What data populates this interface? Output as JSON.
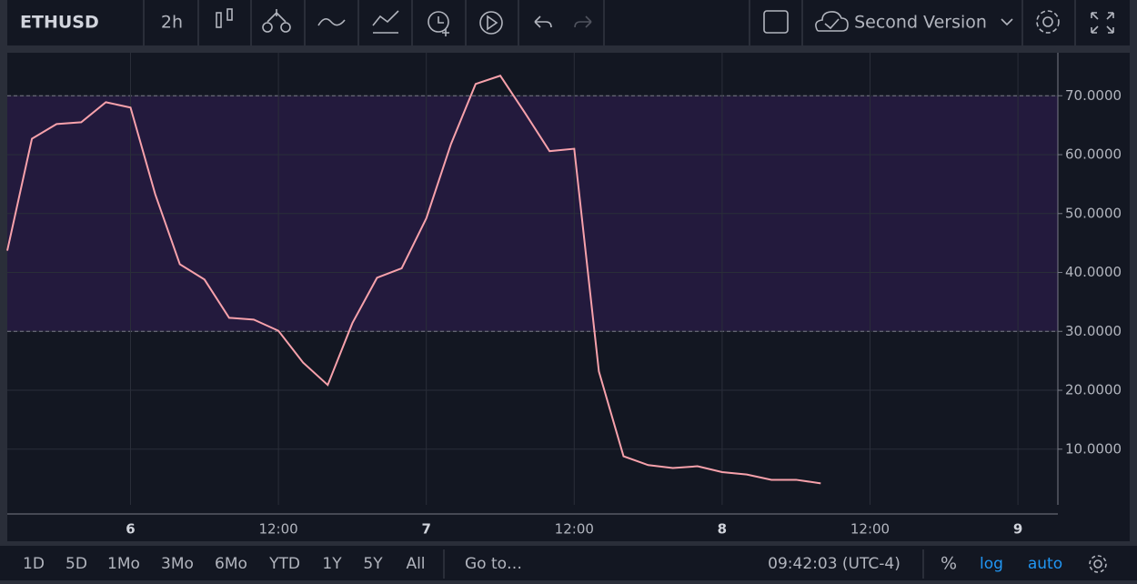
{
  "toolbar": {
    "symbol": "ETHUSD",
    "interval": "2h",
    "layout_name": "Second Version"
  },
  "chart_data": {
    "type": "line",
    "categories": [
      null,
      null,
      null,
      null,
      null,
      "6",
      null,
      null,
      null,
      null,
      null,
      "12:00",
      null,
      null,
      null,
      null,
      null,
      "7",
      null,
      null,
      null,
      null,
      null,
      "12:00",
      null,
      null,
      null,
      null,
      null,
      "8",
      null,
      null,
      null,
      null,
      null,
      "12:00",
      null,
      null,
      null,
      null,
      null,
      "9",
      null
    ],
    "series": [
      {
        "color": "#f7a1ab",
        "values": [
          43.7,
          62.7,
          65.2,
          65.5,
          68.9,
          68.0,
          53.3,
          41.4,
          38.8,
          32.3,
          32.0,
          30.1,
          24.7,
          20.9,
          31.4,
          39.1,
          40.7,
          49.2,
          61.8,
          72.0,
          73.4,
          67.1,
          60.6,
          61.0,
          23.2,
          8.8,
          7.3,
          6.8,
          7.1,
          6.1,
          5.7,
          4.8,
          4.8,
          4.2,
          null,
          null,
          null,
          null,
          null,
          null,
          null,
          null,
          null
        ]
      }
    ],
    "band": [
      30,
      70
    ],
    "band_color": "#231a3d",
    "ylim": [
      -1,
      77.3
    ],
    "yticks": [
      {
        "value": 10,
        "label": "10.0000"
      },
      {
        "value": 20,
        "label": "20.0000"
      },
      {
        "value": 30,
        "label": "30.0000"
      },
      {
        "value": 40,
        "label": "40.0000"
      },
      {
        "value": 50,
        "label": "50.0000"
      },
      {
        "value": 60,
        "label": "60.0000"
      },
      {
        "value": 70,
        "label": "70.0000"
      }
    ],
    "grid": true
  },
  "bottom_bar": {
    "ranges": [
      "1D",
      "5D",
      "1Mo",
      "3Mo",
      "6Mo",
      "YTD",
      "1Y",
      "5Y",
      "All"
    ],
    "goto": "Go to…",
    "clock": "09:42:03 (UTC-4)",
    "percent": "%",
    "log": "log",
    "auto": "auto"
  }
}
